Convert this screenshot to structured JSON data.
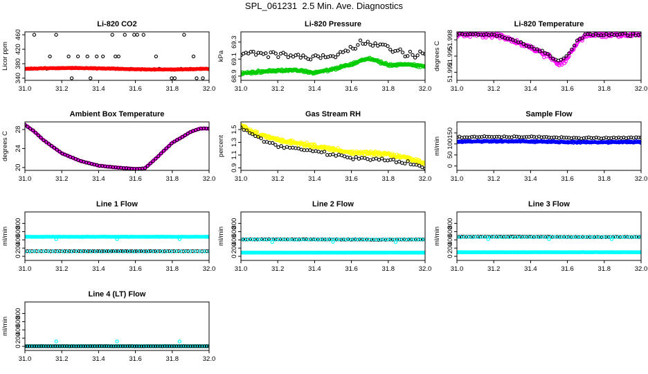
{
  "title": "SPL_061231  2.5 Min. Ave. Diagnostics",
  "colors": {
    "black": "#000000",
    "red": "#ff0000",
    "green": "#00cc00",
    "magenta": "#ff00ff",
    "yellow": "#ffff00",
    "blue": "#0000ff",
    "cyan": "#00ffff"
  },
  "chart_data": [
    {
      "id": "li820-co2",
      "type": "scatter",
      "title": "Li-820 CO2",
      "ylabel": "Licor ppm",
      "xlim": [
        31.0,
        32.0
      ],
      "ylim": [
        334,
        468
      ],
      "xticks": [
        31.0,
        31.2,
        31.4,
        31.6,
        31.8,
        32.0
      ],
      "xticklabels": [
        "31.0",
        "31.2",
        "31.4",
        "31.6",
        "31.8",
        "32.0"
      ],
      "yticks": [
        340,
        380,
        420,
        460
      ],
      "yticklabels": [
        "340",
        "380",
        "420",
        "460"
      ],
      "series": [
        {
          "name": "black",
          "color": "#000000",
          "gen": "levels",
          "levels": [
            460,
            400,
            366,
            340
          ],
          "n": 60,
          "seed": 11
        },
        {
          "name": "red",
          "color": "#ff0000",
          "gen": "band",
          "center": 366,
          "amp": 2,
          "noise": 1.5,
          "n": 320,
          "seed": 12
        }
      ]
    },
    {
      "id": "li820-pressure",
      "type": "scatter",
      "title": "Li-820 Pressure",
      "ylabel": "kPa",
      "xlim": [
        31.0,
        32.0
      ],
      "ylim": [
        68.85,
        69.42
      ],
      "xticks": [
        31.0,
        31.2,
        31.4,
        31.6,
        31.8,
        32.0
      ],
      "xticklabels": [
        "31.0",
        "31.2",
        "31.4",
        "31.6",
        "31.8",
        "32.0"
      ],
      "yticks": [
        68.9,
        69.1,
        69.3
      ],
      "yticklabels": [
        "68.9",
        "69.1",
        "69.3"
      ],
      "series": [
        {
          "name": "black",
          "color": "#000000",
          "gen": "curve",
          "xs": [
            31.0,
            31.2,
            31.4,
            31.5,
            31.6,
            31.7,
            31.8,
            31.9,
            32.0
          ],
          "ys": [
            69.18,
            69.16,
            69.12,
            69.14,
            69.24,
            69.3,
            69.24,
            69.16,
            69.16
          ],
          "noise": 0.06,
          "n": 75,
          "seed": 21
        },
        {
          "name": "green",
          "color": "#00cc00",
          "gen": "curve",
          "xs": [
            31.0,
            31.2,
            31.3,
            31.4,
            31.5,
            31.6,
            31.7,
            31.8,
            31.9,
            32.0
          ],
          "ys": [
            68.93,
            68.97,
            68.97,
            68.94,
            68.98,
            69.04,
            69.11,
            69.03,
            69.04,
            69.01
          ],
          "noise": 0.022,
          "n": 320,
          "seed": 22
        }
      ]
    },
    {
      "id": "li820-temperature",
      "type": "scatter",
      "title": "Li-820 Temperature",
      "ylabel": "degrees C",
      "xlim": [
        31.0,
        32.0
      ],
      "ylim": [
        51.9905,
        51.9995
      ],
      "xticks": [
        31.0,
        31.2,
        31.4,
        31.6,
        31.8,
        32.0
      ],
      "xticklabels": [
        "31.0",
        "31.2",
        "31.4",
        "31.6",
        "31.8",
        "32.0"
      ],
      "yticks": [
        51.992,
        51.995,
        51.998
      ],
      "yticklabels": [
        "51.992",
        "51.995",
        "51.998"
      ],
      "series": [
        {
          "name": "magenta",
          "color": "#ff00ff",
          "gen": "curve",
          "xs": [
            31.0,
            31.2,
            31.3,
            31.4,
            31.5,
            31.55,
            31.6,
            31.65,
            31.7,
            32.0
          ],
          "ys": [
            51.999,
            51.999,
            51.998,
            51.9965,
            51.995,
            51.9935,
            51.9945,
            51.9975,
            51.999,
            51.999
          ],
          "noise": 0.0007,
          "n": 280,
          "seed": 31
        },
        {
          "name": "black",
          "color": "#000000",
          "gen": "curve",
          "xs": [
            31.0,
            31.2,
            31.3,
            31.4,
            31.5,
            31.55,
            31.6,
            31.65,
            31.7,
            32.0
          ],
          "ys": [
            51.999,
            51.999,
            51.998,
            51.9968,
            51.9952,
            51.9942,
            51.995,
            51.9978,
            51.999,
            51.999
          ],
          "noise": 0.0004,
          "n": 70,
          "seed": 32
        }
      ]
    },
    {
      "id": "ambient-box-temperature",
      "type": "scatter",
      "title": "Ambient Box Temperature",
      "ylabel": "degrees C",
      "xlim": [
        31.0,
        32.0
      ],
      "ylim": [
        19.4,
        29.6
      ],
      "xticks": [
        31.0,
        31.2,
        31.4,
        31.6,
        31.8,
        32.0
      ],
      "xticklabels": [
        "31.0",
        "31.2",
        "31.4",
        "31.6",
        "31.8",
        "32.0"
      ],
      "yticks": [
        20,
        24,
        28
      ],
      "yticklabels": [
        "20",
        "24",
        "28"
      ],
      "series": [
        {
          "name": "magenta",
          "color": "#ff00ff",
          "gen": "curve",
          "xs": [
            31.0,
            31.05,
            31.1,
            31.2,
            31.3,
            31.4,
            31.5,
            31.6,
            31.65,
            31.7,
            31.8,
            31.9,
            31.95,
            32.0
          ],
          "ys": [
            29.0,
            27.6,
            25.8,
            23.0,
            21.4,
            20.4,
            20.0,
            19.7,
            19.8,
            21.5,
            25.2,
            27.5,
            28.2,
            28.2
          ],
          "noise": 0.08,
          "n": 300,
          "seed": 41
        },
        {
          "name": "black",
          "color": "#000000",
          "gen": "curve",
          "xs": [
            31.0,
            31.05,
            31.1,
            31.2,
            31.3,
            31.4,
            31.5,
            31.6,
            31.65,
            31.7,
            31.8,
            31.9,
            31.95,
            32.0
          ],
          "ys": [
            29.0,
            27.6,
            25.8,
            23.0,
            21.4,
            20.4,
            20.0,
            19.7,
            19.8,
            21.5,
            25.2,
            27.5,
            28.2,
            28.2
          ],
          "noise": 0.05,
          "n": 70,
          "seed": 42
        }
      ]
    },
    {
      "id": "gas-stream-rh",
      "type": "scatter",
      "title": "Gas Stream RH",
      "ylabel": "percent",
      "xlim": [
        31.0,
        32.0
      ],
      "ylim": [
        0.86,
        1.62
      ],
      "xticks": [
        31.0,
        31.2,
        31.4,
        31.6,
        31.8,
        32.0
      ],
      "xticklabels": [
        "31.0",
        "31.2",
        "31.4",
        "31.6",
        "31.8",
        "32.0"
      ],
      "yticks": [
        0.9,
        1.1,
        1.3,
        1.5
      ],
      "yticklabels": [
        "0.9",
        "1.1",
        "1.3",
        "1.5"
      ],
      "series": [
        {
          "name": "yellow",
          "color": "#ffff00",
          "gen": "curve",
          "xs": [
            31.0,
            31.1,
            31.2,
            31.4,
            31.6,
            31.8,
            31.9,
            32.0
          ],
          "ys": [
            1.56,
            1.42,
            1.34,
            1.24,
            1.14,
            1.11,
            1.05,
            0.98
          ],
          "noise": 0.045,
          "n": 320,
          "seed": 51
        },
        {
          "name": "black",
          "color": "#000000",
          "gen": "curve",
          "xs": [
            31.0,
            31.1,
            31.2,
            31.4,
            31.6,
            31.8,
            31.9,
            32.0
          ],
          "ys": [
            1.53,
            1.36,
            1.24,
            1.16,
            1.06,
            1.03,
            0.99,
            0.9
          ],
          "noise": 0.035,
          "n": 65,
          "seed": 52
        }
      ]
    },
    {
      "id": "sample-flow",
      "type": "scatter",
      "title": "Sample Flow",
      "ylabel": "ml/min",
      "xlim": [
        31.0,
        32.0
      ],
      "ylim": [
        -20,
        200
      ],
      "xticks": [
        31.0,
        31.2,
        31.4,
        31.6,
        31.8,
        32.0
      ],
      "xticklabels": [
        "31.0",
        "31.2",
        "31.4",
        "31.6",
        "31.8",
        "32.0"
      ],
      "yticks": [
        0,
        50,
        100,
        150
      ],
      "yticklabels": [
        "0",
        "50",
        "100",
        "150"
      ],
      "series": [
        {
          "name": "blue",
          "color": "#0000ff",
          "gen": "band",
          "center": 110,
          "amp": 2,
          "noise": 5,
          "n": 320,
          "seed": 61
        },
        {
          "name": "black",
          "color": "#000000",
          "gen": "band",
          "center": 130,
          "amp": 3,
          "noise": 4,
          "n": 75,
          "seed": 62
        }
      ]
    },
    {
      "id": "line-1-flow",
      "type": "scatter",
      "title": "Line 1 Flow",
      "ylabel": "ml/min",
      "xlim": [
        31.0,
        32.0
      ],
      "ylim": [
        -100,
        1080
      ],
      "xticks": [
        31.0,
        31.2,
        31.4,
        31.6,
        31.8,
        32.0
      ],
      "xticklabels": [
        "31.0",
        "31.2",
        "31.4",
        "31.6",
        "31.8",
        "32.0"
      ],
      "yticks": [
        0,
        200,
        400,
        600,
        800
      ],
      "yticklabels": [
        "0",
        "200",
        "400",
        "600",
        "800"
      ],
      "series": [
        {
          "name": "cyan",
          "color": "#00ffff",
          "gen": "band",
          "center": 475,
          "amp": 0,
          "noise": 6,
          "n": 300,
          "seed": 71
        },
        {
          "name": "black",
          "color": "#000000",
          "gen": "band",
          "center": 125,
          "amp": 0,
          "noise": 5,
          "n": 80,
          "seed": 72
        },
        {
          "name": "cyan-low",
          "color": "#00ffff",
          "gen": "band",
          "center": 120,
          "amp": 0,
          "noise": 3,
          "n": 40,
          "seed": 73
        },
        {
          "name": "cyan-outliers",
          "color": "#00ffff",
          "gen": "points",
          "x": [
            31.17,
            31.5,
            31.84
          ],
          "y": [
            415,
            415,
            420
          ]
        }
      ]
    },
    {
      "id": "line-2-flow",
      "type": "scatter",
      "title": "Line 2 Flow",
      "ylabel": "ml/min",
      "xlim": [
        31.0,
        32.0
      ],
      "ylim": [
        -100,
        1080
      ],
      "xticks": [
        31.0,
        31.2,
        31.4,
        31.6,
        31.8,
        32.0
      ],
      "xticklabels": [
        "31.0",
        "31.2",
        "31.4",
        "31.6",
        "31.8",
        "32.0"
      ],
      "yticks": [
        0,
        200,
        400,
        600,
        800
      ],
      "yticklabels": [
        "0",
        "200",
        "400",
        "600",
        "800"
      ],
      "series": [
        {
          "name": "cyan",
          "color": "#00ffff",
          "gen": "band",
          "center": 90,
          "amp": 0,
          "noise": 5,
          "n": 300,
          "seed": 81
        },
        {
          "name": "black",
          "color": "#000000",
          "gen": "band",
          "center": 410,
          "amp": 4,
          "noise": 6,
          "n": 80,
          "seed": 82
        },
        {
          "name": "cyan-upper",
          "color": "#00ffff",
          "gen": "band",
          "center": 410,
          "amp": 0,
          "noise": 5,
          "n": 50,
          "seed": 83
        },
        {
          "name": "cyan-outliers",
          "color": "#00ffff",
          "gen": "points",
          "x": [
            31.17,
            31.5,
            31.84
          ],
          "y": [
            345,
            350,
            345
          ]
        }
      ]
    },
    {
      "id": "line-3-flow",
      "type": "scatter",
      "title": "Line 3 Flow",
      "ylabel": "ml/min",
      "xlim": [
        31.0,
        32.0
      ],
      "ylim": [
        -100,
        1080
      ],
      "xticks": [
        31.0,
        31.2,
        31.4,
        31.6,
        31.8,
        32.0
      ],
      "xticklabels": [
        "31.0",
        "31.2",
        "31.4",
        "31.6",
        "31.8",
        "32.0"
      ],
      "yticks": [
        0,
        200,
        400,
        600,
        800
      ],
      "yticklabels": [
        "0",
        "200",
        "400",
        "600",
        "800"
      ],
      "series": [
        {
          "name": "cyan",
          "color": "#00ffff",
          "gen": "band",
          "center": 100,
          "amp": 0,
          "noise": 5,
          "n": 300,
          "seed": 91
        },
        {
          "name": "black",
          "color": "#000000",
          "gen": "band",
          "center": 475,
          "amp": 4,
          "noise": 6,
          "n": 80,
          "seed": 92
        },
        {
          "name": "cyan-upper",
          "color": "#00ffff",
          "gen": "band",
          "center": 470,
          "amp": 0,
          "noise": 5,
          "n": 50,
          "seed": 93
        },
        {
          "name": "cyan-outliers",
          "color": "#00ffff",
          "gen": "points",
          "x": [
            31.0,
            31.17,
            31.5,
            31.84
          ],
          "y": [
            470,
            420,
            420,
            420
          ]
        }
      ]
    },
    {
      "id": "line-4-lt-flow",
      "type": "scatter",
      "title": "Line 4 (LT) Flow",
      "ylabel": "ml/min",
      "xlim": [
        31.0,
        32.0
      ],
      "ylim": [
        -100,
        1080
      ],
      "xticks": [
        31.0,
        31.2,
        31.4,
        31.6,
        31.8,
        32.0
      ],
      "xticklabels": [
        "31.0",
        "31.2",
        "31.4",
        "31.6",
        "31.8",
        "32.0"
      ],
      "yticks": [
        0,
        200,
        400,
        600,
        800
      ],
      "yticklabels": [
        "0",
        "200",
        "400",
        "600",
        "800"
      ],
      "series": [
        {
          "name": "cyan",
          "color": "#00ffff",
          "gen": "band",
          "center": 3,
          "amp": 0,
          "noise": 2,
          "n": 300,
          "seed": 101
        },
        {
          "name": "black",
          "color": "#000000",
          "gen": "band",
          "center": 3,
          "amp": 0,
          "noise": 2,
          "n": 80,
          "seed": 102
        },
        {
          "name": "cyan-outliers",
          "color": "#00ffff",
          "gen": "points",
          "x": [
            31.17,
            31.5,
            31.84
          ],
          "y": [
            120,
            120,
            120
          ]
        }
      ]
    }
  ]
}
